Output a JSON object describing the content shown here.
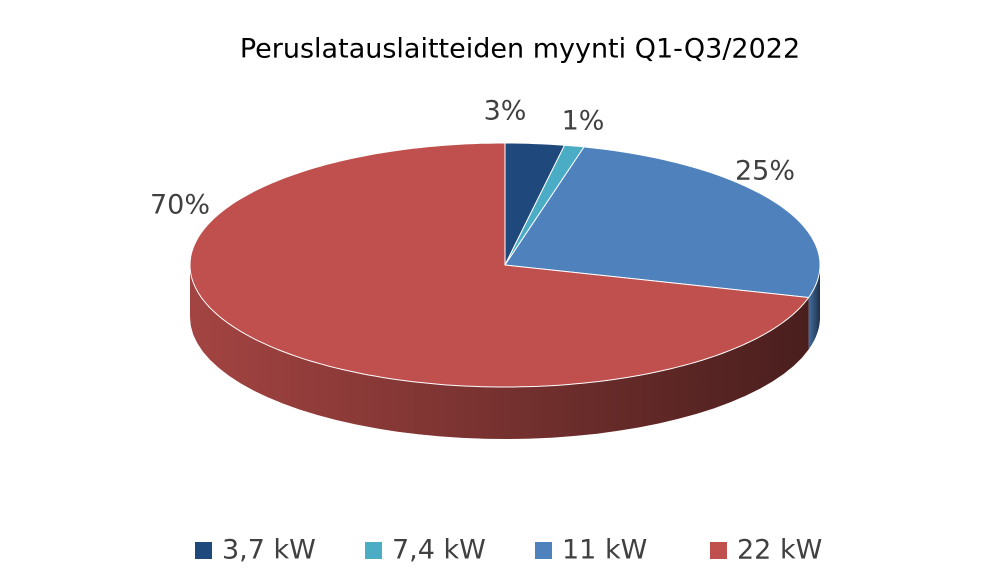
{
  "chart_data": {
    "type": "pie3d",
    "title": "Peruslatauslaitteiden myynti Q1-Q3/2022",
    "categories": [
      "3,7 kW",
      "7,4 kW",
      "11 kW",
      "22 kW"
    ],
    "values": [
      3,
      1,
      25,
      70
    ],
    "value_labels": [
      "3%",
      "1%",
      "25%",
      "70%"
    ],
    "colors": [
      "#1f497d",
      "#4bacc6",
      "#4f81bd",
      "#c0504d"
    ],
    "legend": "bottom"
  }
}
